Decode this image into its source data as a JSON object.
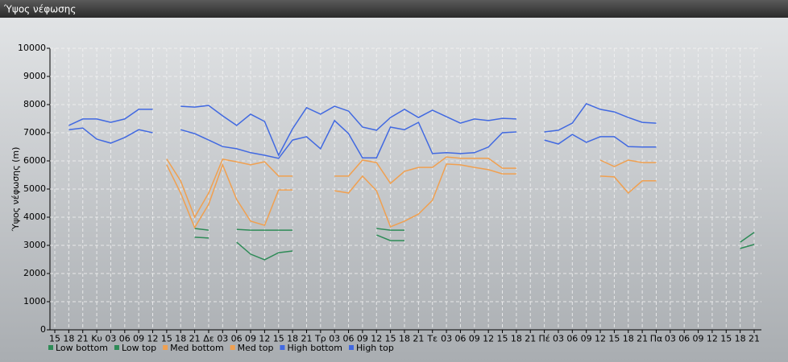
{
  "chart_data": {
    "type": "line",
    "title": "Ύψος νέφωσης",
    "ylabel": "Ύψος νέφωσης (m)",
    "categories": [
      "15",
      "18",
      "21",
      "Κυ",
      "03",
      "06",
      "09",
      "12",
      "15",
      "18",
      "21",
      "Δε",
      "03",
      "06",
      "09",
      "12",
      "15",
      "18",
      "21",
      "Τρ",
      "03",
      "06",
      "09",
      "12",
      "15",
      "18",
      "21",
      "Τε",
      "03",
      "06",
      "09",
      "12",
      "15",
      "18",
      "21",
      "Πέ",
      "03",
      "06",
      "09",
      "12",
      "15",
      "18",
      "21",
      "Πα",
      "03",
      "06",
      "09",
      "12",
      "15",
      "18",
      "21"
    ],
    "ylim": [
      0,
      10000
    ],
    "yticks": [
      0,
      1000,
      2000,
      3000,
      4000,
      5000,
      6000,
      7000,
      8000,
      9000,
      10000
    ],
    "grid": true,
    "series": [
      {
        "name": "Low bottom",
        "color": "#2e8b57",
        "values": [
          null,
          null,
          null,
          null,
          null,
          null,
          null,
          null,
          null,
          null,
          3290,
          3260,
          null,
          3110,
          2690,
          2490,
          2740,
          2800,
          null,
          null,
          null,
          null,
          null,
          3370,
          3170,
          3170,
          null,
          null,
          null,
          null,
          null,
          null,
          null,
          null,
          null,
          null,
          null,
          null,
          null,
          null,
          null,
          null,
          null,
          null,
          null,
          null,
          null,
          null,
          null,
          2890,
          3030
        ]
      },
      {
        "name": "Low top",
        "color": "#2e8b57",
        "values": [
          null,
          null,
          null,
          null,
          null,
          null,
          null,
          null,
          null,
          null,
          3600,
          3540,
          null,
          3570,
          3540,
          3540,
          3540,
          3540,
          null,
          null,
          null,
          null,
          null,
          3600,
          3540,
          3540,
          null,
          null,
          null,
          null,
          null,
          null,
          null,
          null,
          null,
          null,
          null,
          null,
          null,
          null,
          null,
          null,
          null,
          null,
          null,
          null,
          null,
          null,
          null,
          3110,
          3460
        ]
      },
      {
        "name": "Med bottom",
        "color": "#f0a050",
        "values": [
          null,
          null,
          null,
          null,
          null,
          null,
          null,
          null,
          5860,
          4860,
          3630,
          4460,
          5860,
          4630,
          3860,
          3710,
          4970,
          4970,
          null,
          null,
          4940,
          4860,
          5460,
          4940,
          3660,
          3860,
          4110,
          4600,
          5890,
          5860,
          5770,
          5690,
          5540,
          5540,
          null,
          null,
          null,
          null,
          null,
          5460,
          5430,
          4860,
          5290,
          5290,
          null,
          null,
          null,
          null,
          null,
          null,
          null
        ]
      },
      {
        "name": "Med top",
        "color": "#f0a050",
        "values": [
          null,
          null,
          null,
          null,
          null,
          null,
          null,
          null,
          6070,
          5290,
          4000,
          4860,
          6060,
          5970,
          5860,
          5970,
          5460,
          5460,
          null,
          null,
          5460,
          5460,
          6030,
          5940,
          5200,
          5630,
          5770,
          5770,
          6140,
          6090,
          6090,
          6090,
          5740,
          5740,
          null,
          null,
          null,
          null,
          null,
          6030,
          5800,
          6030,
          5940,
          5940,
          null,
          null,
          null,
          null,
          null,
          null,
          null
        ]
      },
      {
        "name": "High bottom",
        "color": "#4169e1",
        "values": [
          null,
          7110,
          7170,
          6770,
          6630,
          6830,
          7110,
          7000,
          null,
          7110,
          6970,
          6740,
          6510,
          6430,
          6290,
          6200,
          6090,
          6740,
          6860,
          6430,
          7430,
          6970,
          6110,
          6110,
          7200,
          7110,
          7370,
          6260,
          6290,
          6260,
          6290,
          6490,
          7000,
          7030,
          null,
          6740,
          6600,
          6940,
          6660,
          6860,
          6860,
          6510,
          6490,
          6490,
          null,
          null,
          null,
          null,
          null,
          null,
          null
        ]
      },
      {
        "name": "High top",
        "color": "#4169e1",
        "values": [
          null,
          7260,
          7490,
          7490,
          7370,
          7490,
          7830,
          7830,
          null,
          7940,
          7910,
          7970,
          7600,
          7260,
          7660,
          7400,
          6200,
          7140,
          7890,
          7660,
          7940,
          7770,
          7200,
          7090,
          7540,
          7830,
          7540,
          7800,
          7570,
          7340,
          7490,
          7430,
          7510,
          7490,
          null,
          7030,
          7090,
          7340,
          8030,
          7830,
          7740,
          7540,
          7370,
          7340,
          null,
          null,
          null,
          null,
          null,
          null,
          null
        ]
      }
    ]
  }
}
